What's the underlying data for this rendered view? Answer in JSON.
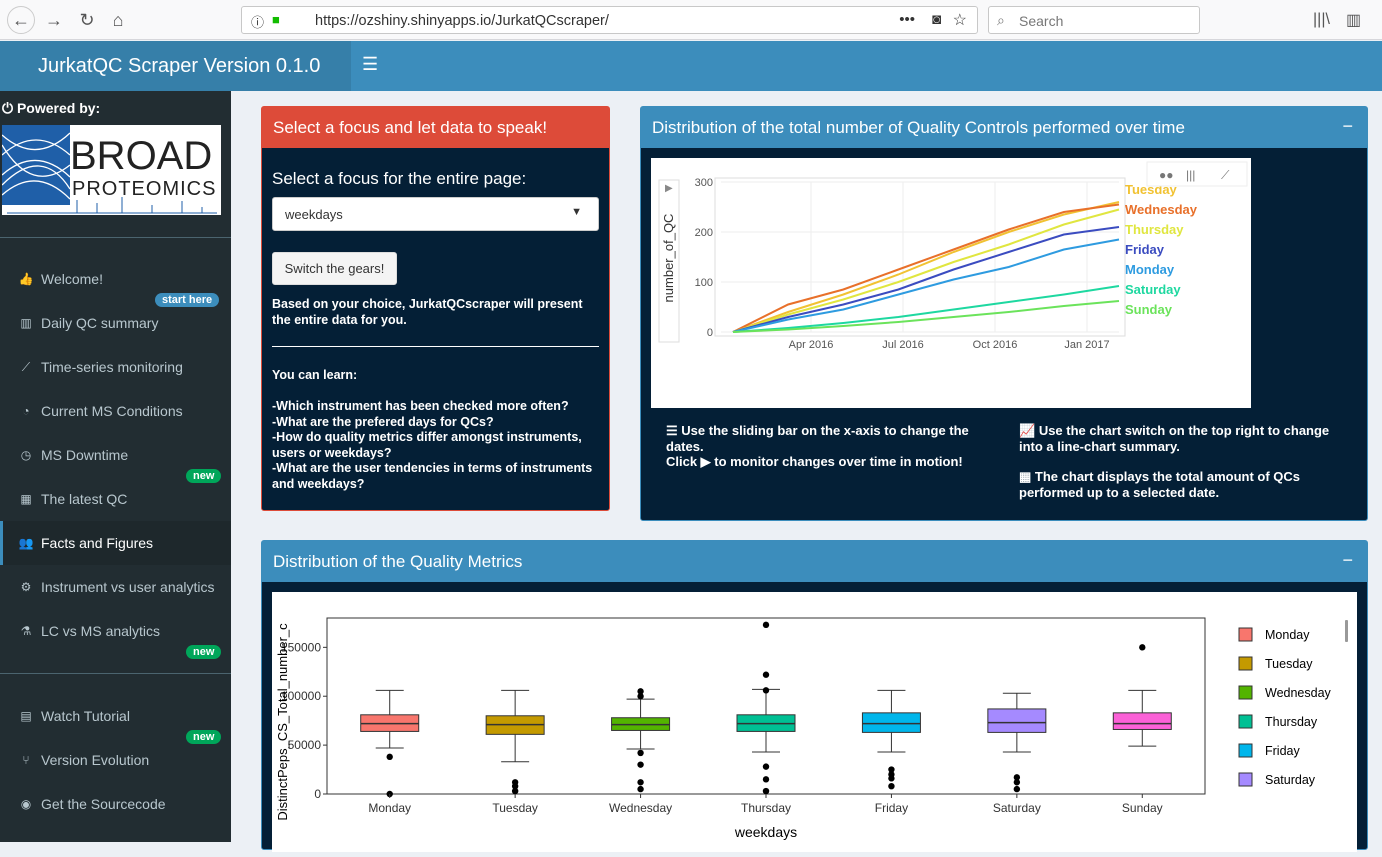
{
  "browser": {
    "url": "https://ozshiny.shinyapps.io/JurkatQCscraper/",
    "search_placeholder": "Search"
  },
  "header": {
    "title": "JurkatQC Scraper Version 0.1.0"
  },
  "sidebar": {
    "powered": "Powered by:",
    "logo_main": "BROAD",
    "logo_sub": "PROTEOMICS",
    "items": [
      {
        "label": "Welcome!",
        "icon": "thumbs-up-icon"
      },
      {
        "label": "Daily QC summary",
        "icon": "bar-chart-icon"
      },
      {
        "label": "Time-series monitoring",
        "icon": "line-chart-icon"
      },
      {
        "label": "Current MS Conditions",
        "icon": "dashboard-icon"
      },
      {
        "label": "MS Downtime",
        "icon": "clock-icon"
      },
      {
        "label": "The latest QC",
        "icon": "table-icon"
      },
      {
        "label": "Facts and Figures",
        "icon": "users-icon"
      },
      {
        "label": "Instrument vs user analytics",
        "icon": "gears-icon"
      },
      {
        "label": "LC vs MS analytics",
        "icon": "flask-icon"
      },
      {
        "label": "Watch Tutorial",
        "icon": "film-icon"
      },
      {
        "label": "Version Evolution",
        "icon": "code-fork-icon"
      },
      {
        "label": "Get the Sourcecode",
        "icon": "github-icon"
      }
    ],
    "badges": {
      "start_here": "start here",
      "new": "new"
    }
  },
  "focus_box": {
    "title": "Select a focus and let data to speak!",
    "select_label": "Select a focus for the entire page:",
    "select_value": "weekdays",
    "button": "Switch the gears!",
    "note": "Based on your choice, JurkatQCscraper will present the entire data for you.",
    "learn_title": "You can learn:",
    "learn_items": [
      "-Which instrument has been checked more often?",
      "-What are the prefered days for QCs?",
      "-How do quality metrics differ amongst instruments, users or weekdays?",
      "-What are the user tendencies in terms of instruments and weekdays?"
    ]
  },
  "dist_box": {
    "title": "Distribution of the total number of Quality Controls performed over time",
    "minimize": "−",
    "tip1": "Use the sliding bar on the x-axis to change the dates.",
    "tip2": "Click ▶ to monitor changes over time in motion!",
    "tip3": "Use the chart switch on the top right to change into a line-chart summary.",
    "tip4": "The chart displays the total amount of QCs performed up to a selected date."
  },
  "metrics_box": {
    "title": "Distribution of the Quality Metrics",
    "minimize": "−"
  },
  "chart_data": [
    {
      "type": "line",
      "ylabel": "number_of_QC",
      "xticks": [
        "Apr 2016",
        "Jul 2016",
        "Oct 2016",
        "Jan 2017"
      ],
      "yticks": [
        0,
        100,
        200,
        300
      ],
      "ylim": [
        0,
        300
      ],
      "x": [
        "2016-01",
        "2016-03",
        "2016-05",
        "2016-07",
        "2016-09",
        "2016-11",
        "2017-01",
        "2017-02"
      ],
      "series": [
        {
          "name": "Tuesday",
          "color": "#f1c232",
          "values": [
            0,
            40,
            75,
            115,
            160,
            200,
            235,
            260
          ]
        },
        {
          "name": "Wednesday",
          "color": "#e8702a",
          "values": [
            0,
            55,
            85,
            125,
            165,
            205,
            240,
            255
          ]
        },
        {
          "name": "Thursday",
          "color": "#e0e640",
          "values": [
            0,
            35,
            65,
            100,
            140,
            175,
            215,
            245
          ]
        },
        {
          "name": "Friday",
          "color": "#3b4cc0",
          "values": [
            0,
            30,
            55,
            85,
            125,
            160,
            195,
            210
          ]
        },
        {
          "name": "Monday",
          "color": "#2e9be0",
          "values": [
            0,
            25,
            45,
            75,
            105,
            130,
            165,
            185
          ]
        },
        {
          "name": "Saturday",
          "color": "#1ed8a0",
          "values": [
            0,
            8,
            18,
            30,
            45,
            60,
            75,
            92
          ]
        },
        {
          "name": "Sunday",
          "color": "#6be35b",
          "values": [
            0,
            5,
            12,
            20,
            30,
            40,
            52,
            62
          ]
        }
      ]
    },
    {
      "type": "box",
      "xlabel": "weekdays",
      "ylabel": "DistinctPeps_CS_Total_number_c",
      "yticks": [
        "0",
        "50000",
        "100000",
        "150000"
      ],
      "ylim": [
        0,
        180000
      ],
      "categories": [
        "Monday",
        "Tuesday",
        "Wednesday",
        "Thursday",
        "Friday",
        "Saturday",
        "Sunday"
      ],
      "colors": [
        "#f8766d",
        "#c49a00",
        "#53b400",
        "#00c094",
        "#00b6eb",
        "#a58aff",
        "#fb61d7"
      ],
      "boxes": [
        {
          "q1": 64000,
          "median": 72000,
          "q3": 81000,
          "lo": 47000,
          "hi": 106000,
          "outliers": [
            38000,
            0
          ]
        },
        {
          "q1": 61000,
          "median": 71000,
          "q3": 80000,
          "lo": 33000,
          "hi": 106000,
          "outliers": [
            12000,
            8000,
            3000
          ]
        },
        {
          "q1": 65000,
          "median": 71000,
          "q3": 78000,
          "lo": 46000,
          "hi": 97000,
          "outliers": [
            105000,
            100000,
            42000,
            30000,
            12000,
            5000
          ]
        },
        {
          "q1": 64000,
          "median": 72000,
          "q3": 81000,
          "lo": 43000,
          "hi": 107000,
          "outliers": [
            173000,
            122000,
            106000,
            28000,
            15000,
            3000
          ]
        },
        {
          "q1": 63000,
          "median": 72000,
          "q3": 83000,
          "lo": 43000,
          "hi": 106000,
          "outliers": [
            25000,
            20000,
            16000,
            8000
          ]
        },
        {
          "q1": 63000,
          "median": 73000,
          "q3": 87000,
          "lo": 43000,
          "hi": 103000,
          "outliers": [
            17000,
            12000,
            5000
          ]
        },
        {
          "q1": 66000,
          "median": 72000,
          "q3": 83000,
          "lo": 49000,
          "hi": 106000,
          "outliers": [
            150000
          ]
        }
      ]
    }
  ]
}
